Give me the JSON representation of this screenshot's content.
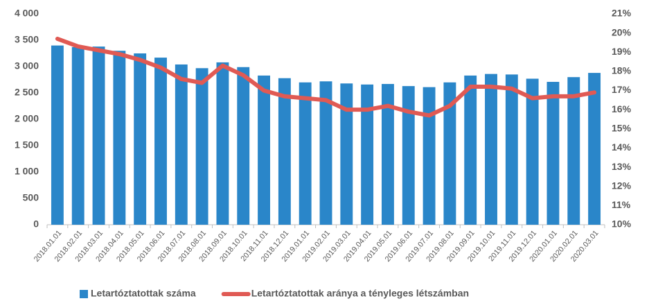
{
  "chart_data": {
    "type": "bar_line",
    "categories": [
      "2018.01.01",
      "2018.02.01",
      "2018.03.01",
      "2018.04.01",
      "2018.05.01",
      "2018.06.01",
      "2018.07.01",
      "2018.08.01",
      "2018.09.01",
      "2018.10.01",
      "2018.11.01",
      "2018.12.01",
      "2019.01.01",
      "2019.02.01",
      "2019.03.01",
      "2019.04.01",
      "2019.05.01",
      "2019.06.01",
      "2019.07.01",
      "2019.08.01",
      "2019.09.01",
      "2019.10.01",
      "2019.11.01",
      "2019.12.01",
      "2020.01.01",
      "2020.02.01",
      "2020.03.01"
    ],
    "series": [
      {
        "name": "Letartóztatottak száma",
        "color": "#2a86c9",
        "type": "bar",
        "axis": "y",
        "values": [
          3400,
          3370,
          3380,
          3300,
          3250,
          3170,
          3040,
          2970,
          3080,
          2990,
          2830,
          2780,
          2700,
          2720,
          2680,
          2660,
          2670,
          2630,
          2610,
          2700,
          2830,
          2860,
          2850,
          2770,
          2710,
          2800,
          2880
        ]
      },
      {
        "name": "Letartóztatottak aránya a tényleges létszámban",
        "color": "#e05a54",
        "type": "line",
        "axis": "y2",
        "values": [
          19.7,
          19.3,
          19.1,
          18.9,
          18.6,
          18.2,
          17.6,
          17.4,
          18.3,
          17.8,
          17.0,
          16.7,
          16.6,
          16.5,
          16.0,
          16.0,
          16.2,
          15.9,
          15.7,
          16.2,
          17.2,
          17.2,
          17.1,
          16.6,
          16.7,
          16.7,
          16.9
        ]
      }
    ],
    "ylim": [
      0,
      4000
    ],
    "yticks": [
      0,
      500,
      {
        "value": 1000,
        "label": "1 000"
      },
      {
        "value": 1500,
        "label": "1 500"
      },
      {
        "value": 2000,
        "label": "2 000"
      },
      {
        "value": 2500,
        "label": "2 500"
      },
      {
        "value": 3000,
        "label": "3 000"
      },
      {
        "value": 3500,
        "label": "3 500"
      },
      {
        "value": 4000,
        "label": "4 000"
      }
    ],
    "y2lim": [
      10,
      21
    ],
    "y2ticks": [
      {
        "value": 10,
        "label": "10%"
      },
      {
        "value": 11,
        "label": "11%"
      },
      {
        "value": 12,
        "label": "12%"
      },
      {
        "value": 13,
        "label": "13%"
      },
      {
        "value": 14,
        "label": "14%"
      },
      {
        "value": 15,
        "label": "15%"
      },
      {
        "value": 16,
        "label": "16%"
      },
      {
        "value": 17,
        "label": "17%"
      },
      {
        "value": 18,
        "label": "18%"
      },
      {
        "value": 19,
        "label": "19%"
      },
      {
        "value": 20,
        "label": "20%"
      },
      {
        "value": 21,
        "label": "21%"
      }
    ],
    "legend": "bottom"
  }
}
